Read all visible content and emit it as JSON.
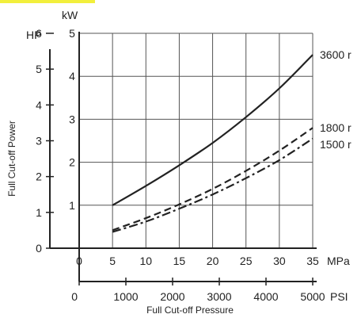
{
  "chart_data": {
    "type": "line",
    "title": "",
    "xlabel": "Full Cut-off Pressure",
    "ylabel": "Full Cut-off Power",
    "x_unit_primary": "MPa",
    "x_unit_secondary": "PSI",
    "y_unit_left": "HP",
    "y_unit_right": "kW",
    "xlim_mpa": [
      0,
      35
    ],
    "ylim_kw": [
      0,
      5
    ],
    "xlim_psi": [
      0,
      5000
    ],
    "ylim_hp": [
      0,
      6
    ],
    "x_ticks_mpa": [
      "0",
      "5",
      "10",
      "15",
      "20",
      "25",
      "30",
      "35"
    ],
    "x_ticks_psi": [
      "0",
      "1000",
      "2000",
      "3000",
      "4000",
      "5000"
    ],
    "y_ticks_kw": [
      "1",
      "2",
      "3",
      "4",
      "5"
    ],
    "y_ticks_hp": [
      "0",
      "1",
      "2",
      "3",
      "4",
      "5",
      "6"
    ],
    "grid": true,
    "series": [
      {
        "name": "3600 r",
        "style": "solid",
        "x": [
          5,
          10,
          15,
          20,
          25,
          30,
          35
        ],
        "y": [
          1.0,
          1.45,
          1.93,
          2.45,
          3.05,
          3.72,
          4.5
        ]
      },
      {
        "name": "1800 r",
        "style": "dashed",
        "x": [
          5,
          10,
          15,
          20,
          25,
          30,
          35
        ],
        "y": [
          0.42,
          0.7,
          1.02,
          1.38,
          1.8,
          2.27,
          2.8
        ]
      },
      {
        "name": "1500 r",
        "style": "dashdot",
        "x": [
          5,
          10,
          15,
          20,
          25,
          30,
          35
        ],
        "y": [
          0.38,
          0.62,
          0.92,
          1.25,
          1.63,
          2.05,
          2.55
        ]
      }
    ],
    "colors": {
      "line": "#222222",
      "grid": "#555555",
      "accent": "#f2ef3c"
    }
  }
}
